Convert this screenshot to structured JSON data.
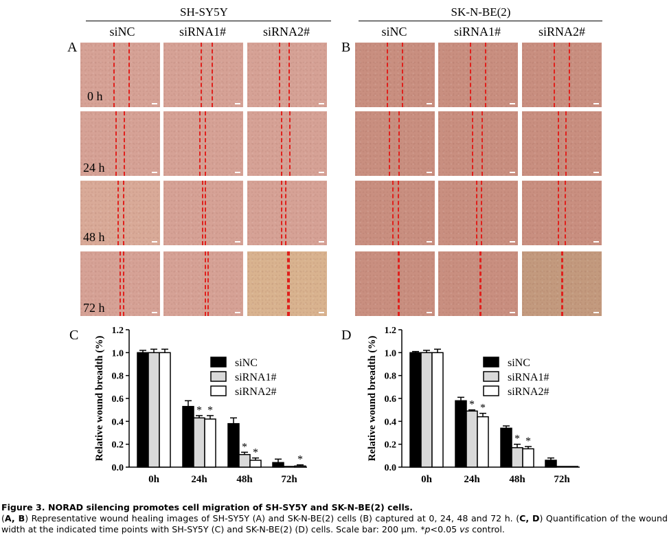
{
  "figure": {
    "groups": [
      {
        "id": "A",
        "name": "SH-SY5Y"
      },
      {
        "id": "B",
        "name": "SK-N-BE(2)"
      }
    ],
    "columns": [
      "siNC",
      "siRNA1#",
      "siRNA2#"
    ],
    "time_labels": [
      "0 h",
      "24 h",
      "48 h",
      "72 h"
    ],
    "panel_letters": {
      "A": "A",
      "B": "B",
      "C": "C",
      "D": "D"
    },
    "colors": {
      "dashed_line": "#e0201c",
      "tissue_A": "#d6a296",
      "tissue_B": "#c98f80",
      "tissue_72h_a": "#d9b38f"
    }
  },
  "chart_data": [
    {
      "panel": "C",
      "type": "bar",
      "ylabel": "Relative wound breadth (%)",
      "categories": [
        "0h",
        "24h",
        "48h",
        "72h"
      ],
      "ylim": [
        0,
        1.2
      ],
      "yticks": [
        "0.0",
        "0.2",
        "0.4",
        "0.6",
        "0.8",
        "1.0",
        "1.2"
      ],
      "legend_position": "right",
      "series": [
        {
          "name": "siNC",
          "fill": "#000000",
          "values": [
            1.0,
            0.53,
            0.38,
            0.04
          ],
          "errors": [
            0.02,
            0.05,
            0.05,
            0.03
          ]
        },
        {
          "name": "siRNA1#",
          "fill": "#d9d9d9",
          "values": [
            1.0,
            0.43,
            0.11,
            0.0
          ],
          "errors": [
            0.03,
            0.02,
            0.02,
            0.0
          ]
        },
        {
          "name": "siRNA2#",
          "fill": "#ffffff",
          "values": [
            1.0,
            0.42,
            0.06,
            0.01
          ],
          "errors": [
            0.03,
            0.03,
            0.02,
            0.01
          ]
        }
      ],
      "significance": [
        [],
        [
          1,
          2
        ],
        [
          1,
          2
        ],
        [
          2
        ]
      ]
    },
    {
      "panel": "D",
      "type": "bar",
      "ylabel": "Relative wound breadth (%)",
      "categories": [
        "0h",
        "24h",
        "48h",
        "72h"
      ],
      "ylim": [
        0,
        1.2
      ],
      "yticks": [
        "0.0",
        "0.2",
        "0.4",
        "0.6",
        "0.8",
        "1.0",
        "1.2"
      ],
      "legend_position": "right",
      "series": [
        {
          "name": "siNC",
          "fill": "#000000",
          "values": [
            1.0,
            0.58,
            0.34,
            0.06
          ],
          "errors": [
            0.01,
            0.03,
            0.02,
            0.02
          ]
        },
        {
          "name": "siRNA1#",
          "fill": "#d9d9d9",
          "values": [
            1.0,
            0.49,
            0.17,
            0.0
          ],
          "errors": [
            0.02,
            0.01,
            0.03,
            0.0
          ]
        },
        {
          "name": "siRNA2#",
          "fill": "#ffffff",
          "values": [
            1.0,
            0.44,
            0.16,
            0.0
          ],
          "errors": [
            0.03,
            0.03,
            0.02,
            0.0
          ]
        }
      ],
      "significance": [
        [],
        [
          1,
          2
        ],
        [
          1,
          2
        ],
        []
      ]
    }
  ],
  "caption": {
    "title": "Figure 3. NORAD silencing promotes cell migration of SH-SY5Y and SK-N-BE(2) cells.",
    "open_paren": "(",
    "ab_bold": "A, B",
    "text1": ") Representative wound healing images of SH-SY5Y (A) and SK-N-BE(2) cells (B) captured at 0, 24, 48 and 72 h. (",
    "cd_bold": "C, D",
    "text2": ") Quantification of the wound width at the indicated time points with SH-SY5Y (C) and SK-N-BE(2) (D) cells. Scale bar: 200 µm. *",
    "p_italic": "p",
    "text3": "<0.05 ",
    "vs_italic": "vs",
    "text4": " control."
  }
}
